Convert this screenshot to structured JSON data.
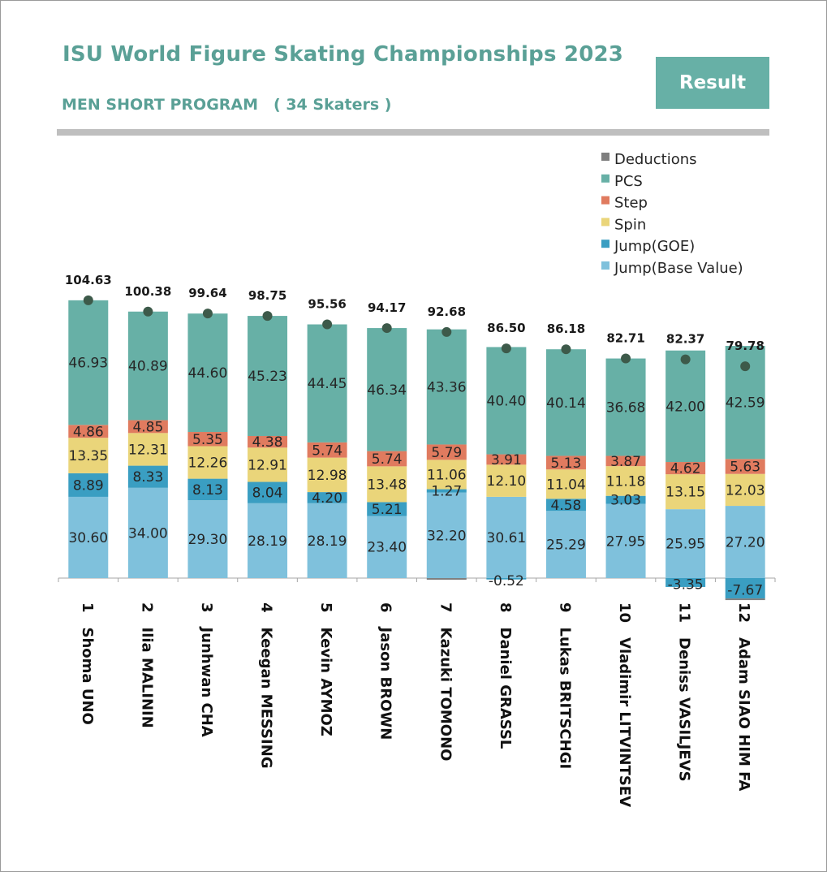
{
  "header": {
    "title": "ISU World Figure Skating Championships 2023",
    "subtitle": "MEN SHORT PROGRAM　( 34 Skaters )",
    "result_button": "Result"
  },
  "colors": {
    "deductions": "#7f7f7f",
    "pcs": "#67b0a6",
    "step": "#e07b5f",
    "spin": "#ead57a",
    "jump_goe": "#3a9ec2",
    "jump_base": "#7fc1dc",
    "total_marker": "#3d5a4a"
  },
  "chart_data": {
    "type": "bar",
    "stacked": true,
    "title": "",
    "xlabel": "",
    "ylabel": "",
    "ylim": [
      -10,
      115
    ],
    "grid": false,
    "legend_position": "top-right",
    "categories": [
      "1　Shoma UNO",
      "2　Ilia MALININ",
      "3　Junhwan CHA",
      "4　Keegan MESSING",
      "5　Kevin AYMOZ",
      "6　Jason BROWN",
      "7　Kazuki TOMONO",
      "8　Daniel GRASSL",
      "9　Lukas BRITSCHGI",
      "10　Vladimir LITVINTSEV",
      "11　Deniss VASILJEVS",
      "12　Adam SIAO HIM FA"
    ],
    "series": [
      {
        "name": "Jump(Base Value)",
        "key": "jump_base",
        "values": [
          30.6,
          34.0,
          29.3,
          28.19,
          28.19,
          23.4,
          32.2,
          30.61,
          25.29,
          27.95,
          25.95,
          27.2
        ]
      },
      {
        "name": "Jump(GOE)",
        "key": "jump_goe",
        "values": [
          8.89,
          8.33,
          8.13,
          8.04,
          4.2,
          5.21,
          1.27,
          -0.52,
          4.58,
          3.03,
          -3.35,
          -7.67
        ]
      },
      {
        "name": "Spin",
        "key": "spin",
        "values": [
          13.35,
          12.31,
          12.26,
          12.91,
          12.98,
          13.48,
          11.06,
          12.1,
          11.04,
          11.18,
          13.15,
          12.03
        ]
      },
      {
        "name": "Step",
        "key": "step",
        "values": [
          4.86,
          4.85,
          5.35,
          4.38,
          5.74,
          5.74,
          5.79,
          3.91,
          5.13,
          3.87,
          4.62,
          5.63
        ]
      },
      {
        "name": "PCS",
        "key": "pcs",
        "values": [
          46.93,
          40.89,
          44.6,
          45.23,
          44.45,
          46.34,
          43.36,
          40.4,
          40.14,
          36.68,
          42.0,
          42.59
        ]
      },
      {
        "name": "Deductions",
        "key": "deductions",
        "values": [
          0,
          0,
          0,
          0,
          0,
          0,
          -1,
          0,
          0,
          0,
          0,
          -1
        ]
      }
    ],
    "totals": [
      "104.63",
      "100.38",
      "99.64",
      "98.75",
      "95.56",
      "94.17",
      "92.68",
      "86.50",
      "86.18",
      "82.71",
      "82.37",
      "79.78"
    ],
    "legend_order": [
      "Deductions",
      "PCS",
      "Step",
      "Spin",
      "Jump(GOE)",
      "Jump(Base Value)"
    ]
  }
}
